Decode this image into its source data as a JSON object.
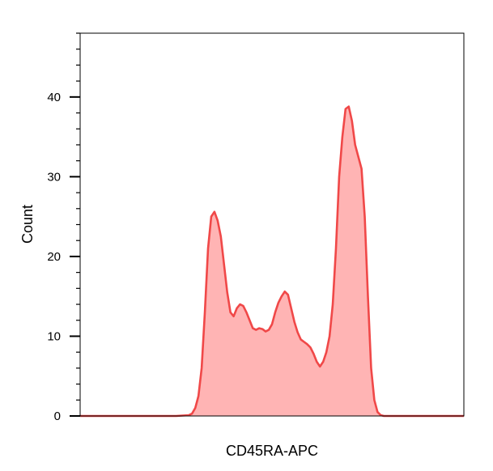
{
  "chart_data": {
    "type": "area",
    "xlabel": "CD45RA-APC",
    "ylabel": "Count",
    "ylim": [
      0,
      48
    ],
    "yticks": [
      0,
      10,
      20,
      30,
      40
    ],
    "ytick_labels": [
      "0",
      "10",
      "20",
      "30",
      "40"
    ],
    "x_tick_labels_shown": false,
    "grid": false,
    "series": [
      {
        "color": "#f04848",
        "fill": "#ffb4b4",
        "x": [
          0,
          20,
          40,
          60,
          68,
          70,
          72,
          74,
          76,
          78,
          80,
          82,
          84,
          86,
          88,
          90,
          92,
          94,
          96,
          98,
          100,
          102,
          104,
          106,
          108,
          110,
          112,
          114,
          116,
          118,
          120,
          122,
          124,
          126,
          128,
          130,
          132,
          134,
          136,
          138,
          140,
          142,
          144,
          146,
          148,
          150,
          152,
          154,
          156,
          158,
          160,
          162,
          164,
          166,
          168,
          170,
          172,
          174,
          176,
          178,
          180,
          182,
          184,
          186,
          188,
          190,
          192,
          196,
          200,
          210,
          240
        ],
        "y": [
          0,
          0,
          0,
          0,
          0.1,
          0.3,
          1.0,
          2.5,
          6.0,
          13.0,
          21.0,
          25.0,
          25.6,
          24.5,
          22.5,
          19.0,
          15.5,
          13.0,
          12.5,
          13.5,
          14.0,
          13.8,
          13.0,
          12.0,
          11.0,
          10.8,
          11.0,
          10.9,
          10.6,
          10.8,
          11.5,
          13.0,
          14.2,
          15.0,
          15.6,
          15.2,
          13.5,
          11.8,
          10.5,
          9.6,
          9.3,
          9.0,
          8.6,
          7.8,
          6.8,
          6.2,
          6.8,
          8.0,
          10.0,
          14.0,
          21.0,
          30.0,
          35.0,
          38.5,
          38.8,
          37.0,
          34.0,
          32.5,
          31.0,
          25.0,
          15.0,
          6.0,
          2.0,
          0.5,
          0.1,
          0,
          0,
          0,
          0,
          0,
          0
        ],
        "xlim": [
          0,
          240
        ]
      }
    ]
  }
}
